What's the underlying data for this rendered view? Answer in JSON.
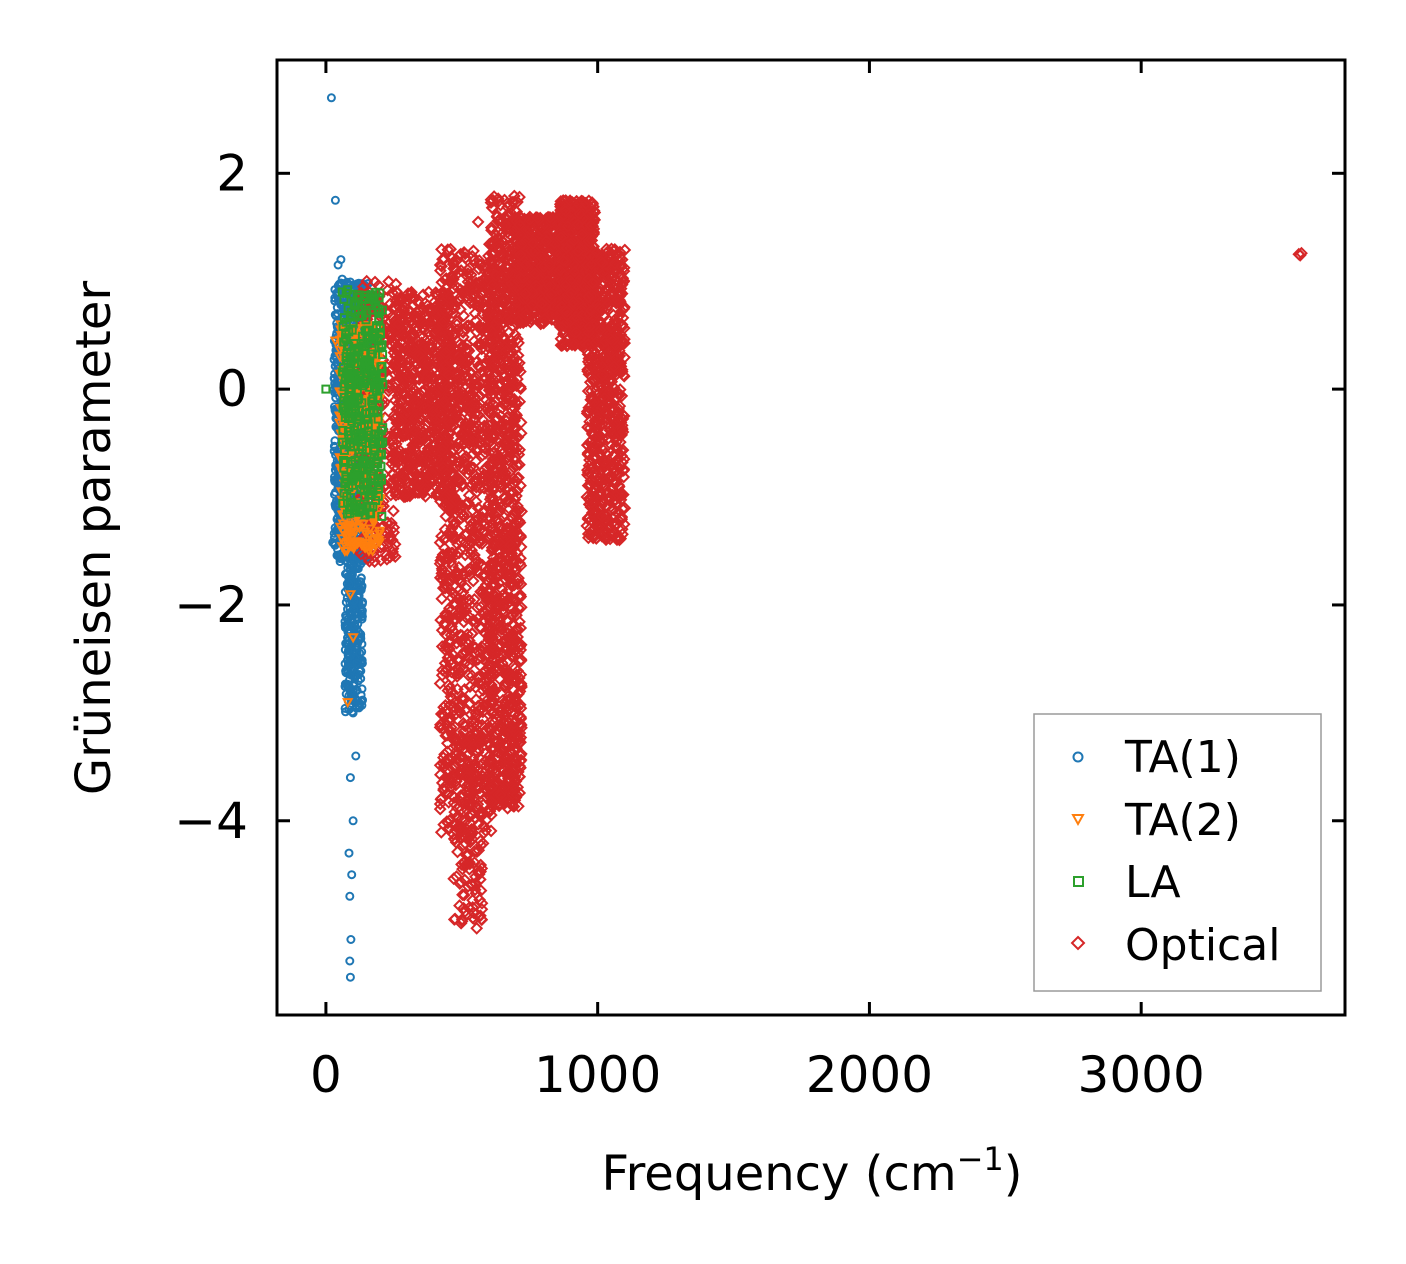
{
  "chart_data": {
    "type": "scatter",
    "title": "",
    "xlabel": "Frequency (cm",
    "xlabel_sup": "−1",
    "xlabel_end": ")",
    "ylabel": "Grüneisen parameter",
    "xlim": [
      -180,
      3750
    ],
    "ylim": [
      -5.8,
      3.05
    ],
    "xticks": [
      0,
      1000,
      2000,
      3000
    ],
    "xtick_labels": [
      "0",
      "1000",
      "2000",
      "3000"
    ],
    "yticks": [
      2,
      0,
      -2,
      -4
    ],
    "ytick_labels": [
      "2",
      "0",
      "−2",
      "−4"
    ],
    "grid": false,
    "legend_position": "lower-right",
    "series": [
      {
        "name": "TA(1)",
        "marker": "circle",
        "color": "#1f77b4",
        "points": [
          [
            20,
            2.7
          ],
          [
            35,
            1.75
          ],
          [
            55,
            1.2
          ],
          [
            45,
            1.15
          ],
          [
            60,
            1.02
          ],
          [
            30,
            0.1
          ],
          [
            40,
            0.3
          ],
          [
            50,
            -0.2
          ],
          [
            45,
            -0.6
          ],
          [
            35,
            -0.75
          ],
          [
            40,
            -1.1
          ],
          [
            25,
            -1.42
          ],
          [
            60,
            -1.4
          ],
          [
            80,
            -1.85
          ],
          [
            95,
            -2.6
          ],
          [
            100,
            -3.0
          ],
          [
            110,
            -3.4
          ],
          [
            90,
            -3.6
          ],
          [
            100,
            -4.0
          ],
          [
            85,
            -4.3
          ],
          [
            95,
            -4.5
          ],
          [
            88,
            -4.7
          ],
          [
            92,
            -5.1
          ],
          [
            88,
            -5.3
          ],
          [
            90,
            -5.45
          ]
        ],
        "clusters": [
          {
            "x_range": [
              30,
              160
            ],
            "y_range": [
              -1.6,
              1.0
            ],
            "count": 900
          },
          {
            "x_range": [
              70,
              135
            ],
            "y_range": [
              -3.0,
              -1.4
            ],
            "count": 260
          }
        ]
      },
      {
        "name": "TA(2)",
        "marker": "triangle_down",
        "color": "#ff7f0e",
        "points": [
          [
            35,
            0.45
          ],
          [
            55,
            0.55
          ],
          [
            70,
            -1.5
          ],
          [
            90,
            -1.9
          ],
          [
            100,
            -2.3
          ],
          [
            80,
            -2.9
          ]
        ],
        "clusters": [
          {
            "x_range": [
              50,
              200
            ],
            "y_range": [
              -1.5,
              0.6
            ],
            "count": 420
          }
        ]
      },
      {
        "name": "LA",
        "marker": "square",
        "color": "#2ca02c",
        "points": [
          [
            0,
            0.0
          ],
          [
            60,
            0.9
          ],
          [
            80,
            0.92
          ],
          [
            100,
            0.88
          ],
          [
            120,
            0.85
          ]
        ],
        "clusters": [
          {
            "x_range": [
              60,
              210
            ],
            "y_range": [
              -1.2,
              0.9
            ],
            "count": 360
          }
        ]
      },
      {
        "name": "Optical",
        "marker": "diamond",
        "color": "#d62728",
        "points": [
          [
            3580,
            1.25
          ],
          [
            3585,
            1.24
          ],
          [
            3590,
            1.26
          ],
          [
            560,
            1.55
          ],
          [
            150,
            1.0
          ],
          [
            540,
            -4.9
          ],
          [
            530,
            -4.4
          ]
        ],
        "clusters": [
          {
            "x_range": [
              120,
              260
            ],
            "y_range": [
              -1.6,
              1.0
            ],
            "count": 300
          },
          {
            "x_range": [
              250,
              460
            ],
            "y_range": [
              -1.0,
              0.9
            ],
            "count": 700
          },
          {
            "x_range": [
              420,
              620
            ],
            "y_range": [
              -4.2,
              1.3
            ],
            "count": 1100
          },
          {
            "x_range": [
              470,
              580
            ],
            "y_range": [
              -5.0,
              -3.2
            ],
            "count": 120
          },
          {
            "x_range": [
              600,
              720
            ],
            "y_range": [
              -3.9,
              1.8
            ],
            "count": 1000
          },
          {
            "x_range": [
              700,
              860
            ],
            "y_range": [
              0.6,
              1.6
            ],
            "count": 500
          },
          {
            "x_range": [
              860,
              990
            ],
            "y_range": [
              0.4,
              1.75
            ],
            "count": 700
          },
          {
            "x_range": [
              960,
              1100
            ],
            "y_range": [
              -1.4,
              1.3
            ],
            "count": 700
          }
        ]
      }
    ]
  }
}
